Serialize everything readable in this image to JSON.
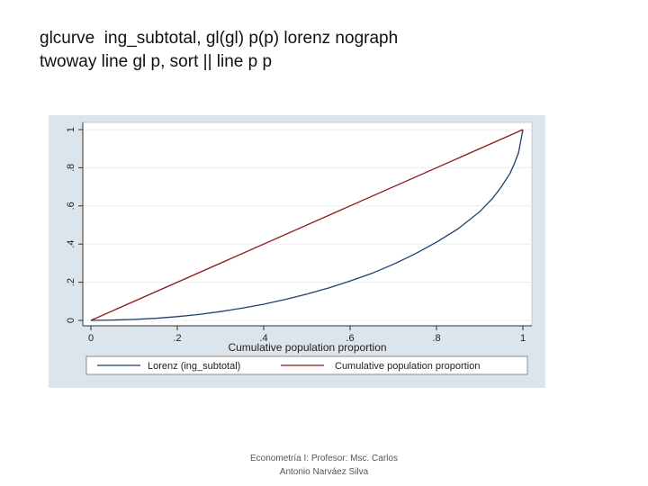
{
  "slide": {
    "code_lines": [
      "glcurve  ing_subtotal, gl(gl) p(p) lorenz nograph",
      "twoway line gl p, sort || line p p"
    ],
    "footer_lines": [
      "Econometría I: Profesor: Msc. Carlos",
      "Antonio Narváez Silva"
    ]
  },
  "chart_data": {
    "type": "line",
    "title": "",
    "xlabel": "Cumulative population proportion",
    "ylabel": "",
    "xlim": [
      0,
      1
    ],
    "ylim": [
      0,
      1
    ],
    "x_ticks": [
      0,
      0.2,
      0.4,
      0.6,
      0.8,
      1
    ],
    "x_tick_labels": [
      "0",
      ".2",
      ".4",
      ".6",
      ".8",
      "1"
    ],
    "y_ticks": [
      0,
      0.2,
      0.4,
      0.6,
      0.8,
      1
    ],
    "y_tick_labels": [
      "0",
      ".2",
      ".4",
      ".6",
      ".8",
      "1"
    ],
    "grid": "horizontal",
    "legend": "bottom",
    "series": [
      {
        "name": "Lorenz (ing_subtotal)",
        "color": "#1f3f6e",
        "x": [
          0,
          0.05,
          0.1,
          0.15,
          0.2,
          0.25,
          0.3,
          0.35,
          0.4,
          0.45,
          0.5,
          0.55,
          0.6,
          0.65,
          0.7,
          0.75,
          0.8,
          0.85,
          0.9,
          0.93,
          0.95,
          0.97,
          0.98,
          0.99,
          1
        ],
        "y": [
          0,
          0.002,
          0.005,
          0.011,
          0.02,
          0.031,
          0.046,
          0.064,
          0.085,
          0.11,
          0.138,
          0.17,
          0.206,
          0.246,
          0.294,
          0.348,
          0.41,
          0.48,
          0.57,
          0.64,
          0.7,
          0.77,
          0.82,
          0.88,
          1
        ]
      },
      {
        "name": "Cumulative population proportion",
        "color": "#8b1a1a",
        "x": [
          0,
          1
        ],
        "y": [
          0,
          1
        ]
      }
    ]
  }
}
